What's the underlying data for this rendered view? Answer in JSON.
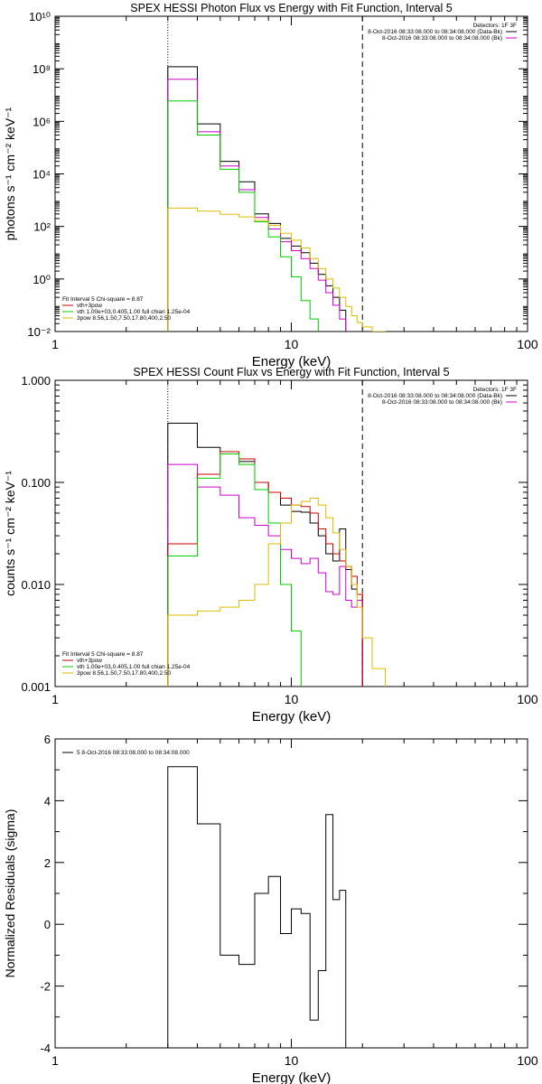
{
  "figure": "SPEX HESSI spectral fit plots",
  "chart_data": [
    {
      "type": "line",
      "panel": "photon-flux",
      "title": "SPEX HESSI Photon Flux vs Energy with Fit Function, Interval 5",
      "xlabel": "Energy (keV)",
      "ylabel": "photons s⁻¹ cm⁻² keV⁻¹",
      "xscale": "log",
      "yscale": "log",
      "xlim": [
        1,
        100
      ],
      "ylim": [
        0.01,
        10000000000.0
      ],
      "xticks": [
        "1",
        "10",
        "100"
      ],
      "yticks": [
        "10⁻²",
        "10⁰",
        "10²",
        "10⁴",
        "10⁶",
        "10⁸",
        "10¹⁰"
      ],
      "vlines": [
        {
          "x": 3,
          "style": "dotted"
        },
        {
          "x": 20,
          "style": "dashed"
        }
      ],
      "legend_top_right": [
        "Detectors: 1F 3F",
        "8-Oct-2016 08:33:08.000 to 08:34:08.000 (Data-Bk)",
        "8-Oct-2016 08:33:08.000 to 08:34:08.000 (Bk)"
      ],
      "legend_bottom_left": [
        "Fit Interval 5   Chi-square = 8.87",
        "vth+3pow",
        "vth 1.00e+03,0.405,1.00  full chian 1.25e-04",
        "3pow 8.56,1.50,7.50,17.80,400,2.50"
      ],
      "bin_edges": [
        3,
        4,
        5,
        6,
        7,
        8,
        9,
        10,
        11,
        12,
        13,
        14,
        15,
        16,
        17,
        18,
        19,
        20,
        22,
        25
      ],
      "series": [
        {
          "name": "Data-Bk",
          "color": "#000000",
          "values": [
            120000000.0,
            800000.0,
            30000.0,
            5000.0,
            300,
            130,
            35,
            18,
            10,
            4,
            1.5,
            0.55,
            0.2,
            0.065
          ]
        },
        {
          "name": "vth+3pow",
          "color": "#cc00cc",
          "values": [
            40000000.0,
            400000.0,
            20000.0,
            2500.0,
            220,
            80,
            26,
            12,
            6,
            2.5,
            0.9,
            0.3,
            0.1,
            0.03
          ]
        },
        {
          "name": "vth",
          "color": "#00cc00",
          "values": [
            6000000.0,
            300000.0,
            15000.0,
            2000.0,
            150,
            40,
            7,
            1.2,
            0.15,
            0.03,
            0.005
          ]
        },
        {
          "name": "3pow",
          "color": "#ddbb00",
          "values": [
            500,
            380,
            290,
            230,
            170,
            110,
            55,
            30,
            15,
            6,
            2.5,
            1.0,
            0.45,
            0.2,
            0.09,
            0.04,
            0.022,
            0.015,
            0.01
          ]
        }
      ]
    },
    {
      "type": "line",
      "panel": "count-flux",
      "title": "SPEX HESSI Count Flux vs Energy with Fit Function, Interval 5",
      "xlabel": "Energy (keV)",
      "ylabel": "counts s⁻¹ cm⁻² keV⁻¹",
      "xscale": "log",
      "yscale": "log",
      "xlim": [
        1,
        100
      ],
      "ylim": [
        0.001,
        1.0
      ],
      "xticks": [
        "1",
        "10",
        "100"
      ],
      "yticks": [
        "0.001",
        "0.010",
        "0.100",
        "1.000"
      ],
      "vlines": [
        {
          "x": 3,
          "style": "dotted"
        },
        {
          "x": 20,
          "style": "dashed"
        }
      ],
      "legend_top_right": [
        "Detectors: 1F 3F",
        "8-Oct-2016 08:33:08.000 to 08:34:08.000 (Data-Bk)",
        "8-Oct-2016 08:33:08.000 to 08:34:08.000 (Bk)"
      ],
      "legend_bottom_left": [
        "Fit Interval 5   Chi-square = 8.87",
        "vth+3pow",
        "vth 1.00e+03,0.405,1.00  full chian 1.25e-04",
        "3pow 8.56,1.50,7.50,17.80,400,2.50"
      ],
      "bin_edges": [
        3,
        4,
        5,
        6,
        7,
        8,
        9,
        10,
        11,
        12,
        13,
        14,
        15,
        16,
        17,
        18,
        19,
        20,
        22,
        25
      ],
      "series": [
        {
          "name": "Data-Bk",
          "color": "#000000",
          "values": [
            0.38,
            0.22,
            0.2,
            0.16,
            0.1,
            0.08,
            0.06,
            0.052,
            0.051,
            0.04,
            0.03,
            0.02,
            0.017,
            0.035,
            0.014,
            0.009,
            0.008
          ]
        },
        {
          "name": "Bk",
          "color": "#cc00cc",
          "values": [
            0.15,
            0.09,
            0.075,
            0.045,
            0.038,
            0.03,
            0.022,
            0.018,
            0.016,
            0.018,
            0.013,
            0.0085,
            0.008,
            0.015,
            0.007,
            0.006,
            0.007
          ]
        },
        {
          "name": "vth+3pow",
          "color": "#cc0000",
          "values": [
            0.025,
            0.12,
            0.2,
            0.17,
            0.1,
            0.08,
            0.07,
            0.06,
            0.058,
            0.05,
            0.035,
            0.025,
            0.02,
            0.017,
            0.015,
            0.012,
            0.008
          ]
        },
        {
          "name": "vth",
          "color": "#00cc00",
          "values": [
            0.019,
            0.11,
            0.19,
            0.15,
            0.085,
            0.04,
            0.01,
            0.0035
          ]
        },
        {
          "name": "3pow",
          "color": "#ddbb00",
          "values": [
            0.005,
            0.0055,
            0.006,
            0.007,
            0.01,
            0.025,
            0.04,
            0.06,
            0.065,
            0.07,
            0.06,
            0.045,
            0.032,
            0.022,
            0.015,
            0.01,
            0.006,
            0.003,
            0.0015
          ]
        }
      ]
    },
    {
      "type": "line",
      "panel": "residuals",
      "title": "",
      "xlabel": "Energy (keV)",
      "ylabel": "Normalized Residuals (sigma)",
      "xscale": "log",
      "yscale": "linear",
      "xlim": [
        1,
        100
      ],
      "ylim": [
        -4,
        6
      ],
      "xticks": [
        "1",
        "10",
        "100"
      ],
      "yticks": [
        "-4",
        "-2",
        "0",
        "2",
        "4",
        "6"
      ],
      "legend": [
        "5  8-Oct-2016 08:33:08.000 to 08:34:08.000"
      ],
      "bin_edges": [
        3,
        4,
        5,
        6,
        7,
        8,
        9,
        10,
        11,
        12,
        13,
        14,
        15,
        16,
        17,
        18,
        19,
        20
      ],
      "series": [
        {
          "name": "5",
          "color": "#000000",
          "values": [
            5.1,
            3.25,
            -1.0,
            -1.3,
            1.0,
            1.55,
            -0.3,
            0.5,
            0.35,
            -3.1,
            -1.5,
            3.55,
            0.8,
            1.1
          ]
        }
      ]
    }
  ]
}
